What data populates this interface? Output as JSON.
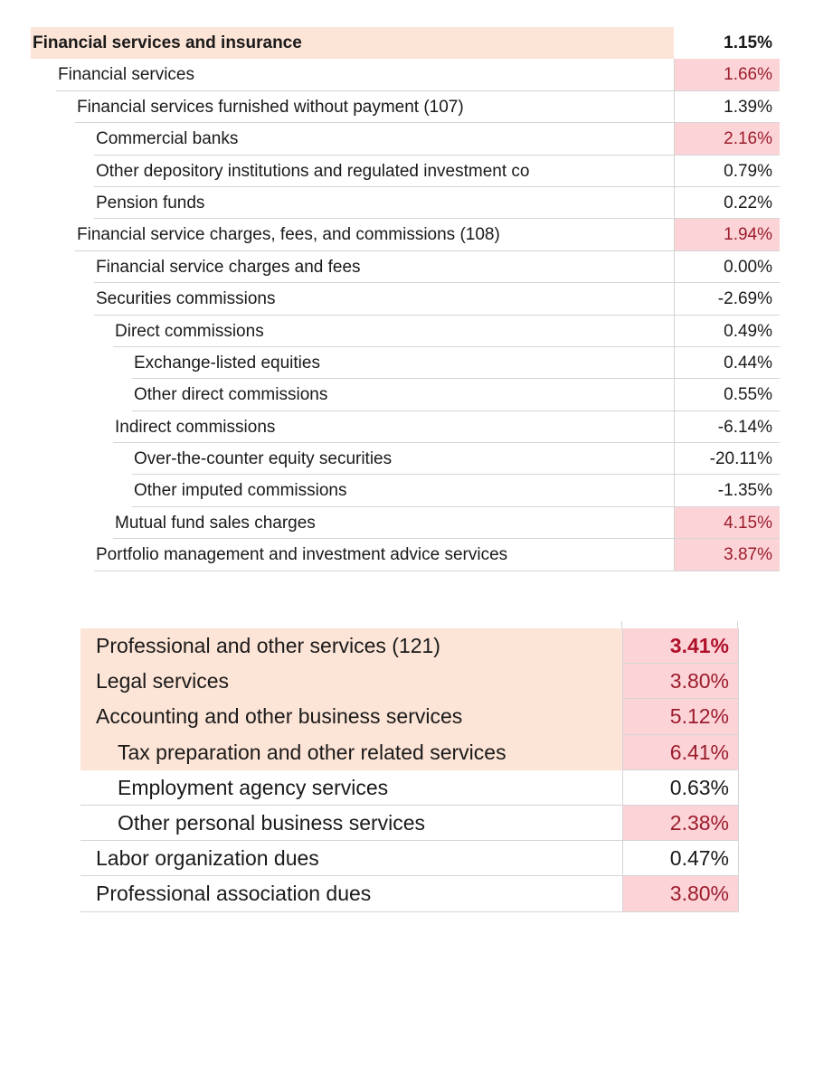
{
  "financial_table": {
    "rows": [
      {
        "label": "Financial services and insurance",
        "value": "1.15%",
        "level": 0,
        "header": true,
        "highlight": false
      },
      {
        "label": "Financial services",
        "value": "1.66%",
        "level": 1,
        "highlight": true
      },
      {
        "label": "Financial services furnished without payment (107)",
        "value": "1.39%",
        "level": 2,
        "highlight": false
      },
      {
        "label": "Commercial banks",
        "value": "2.16%",
        "level": 3,
        "highlight": true
      },
      {
        "label": "Other depository institutions and regulated investment co",
        "value": "0.79%",
        "level": 3,
        "highlight": false
      },
      {
        "label": "Pension funds",
        "value": "0.22%",
        "level": 3,
        "highlight": false
      },
      {
        "label": "Financial service charges, fees, and commissions (108)",
        "value": "1.94%",
        "level": 2,
        "highlight": true
      },
      {
        "label": "Financial service charges and fees",
        "value": "0.00%",
        "level": 3,
        "highlight": false
      },
      {
        "label": "Securities commissions",
        "value": "-2.69%",
        "level": 3,
        "highlight": false
      },
      {
        "label": "Direct commissions",
        "value": "0.49%",
        "level": 4,
        "highlight": false
      },
      {
        "label": "Exchange-listed equities",
        "value": "0.44%",
        "level": 5,
        "highlight": false
      },
      {
        "label": "Other direct commissions",
        "value": "0.55%",
        "level": 5,
        "highlight": false
      },
      {
        "label": "Indirect commissions",
        "value": "-6.14%",
        "level": 4,
        "highlight": false
      },
      {
        "label": "Over-the-counter equity securities",
        "value": "-20.11%",
        "level": 5,
        "highlight": false
      },
      {
        "label": "Other imputed commissions",
        "value": "-1.35%",
        "level": 5,
        "highlight": false
      },
      {
        "label": "Mutual fund sales charges",
        "value": "4.15%",
        "level": 4,
        "highlight": true
      },
      {
        "label": "Portfolio management and investment advice services",
        "value": "3.87%",
        "level": 3,
        "highlight": true
      }
    ]
  },
  "professional_table": {
    "rows": [
      {
        "label": "Professional and other services (121)",
        "value": "3.41%",
        "level": 0,
        "label_highlight": true,
        "highlight": true,
        "bold_value": true
      },
      {
        "label": "Legal services",
        "value": "3.80%",
        "level": 0,
        "label_highlight": true,
        "highlight": true
      },
      {
        "label": "Accounting and other business services",
        "value": "5.12%",
        "level": 0,
        "label_highlight": true,
        "highlight": true
      },
      {
        "label": "Tax preparation and other related services",
        "value": "6.41%",
        "level": 1,
        "label_highlight": true,
        "highlight": true
      },
      {
        "label": "Employment agency services",
        "value": "0.63%",
        "level": 1,
        "label_highlight": false,
        "highlight": false
      },
      {
        "label": "Other personal business services",
        "value": "2.38%",
        "level": 1,
        "label_highlight": false,
        "highlight": true
      },
      {
        "label": "Labor organization dues",
        "value": "0.47%",
        "level": 0,
        "label_highlight": false,
        "highlight": false
      },
      {
        "label": "Professional association dues",
        "value": "3.80%",
        "level": 0,
        "label_highlight": false,
        "highlight": true
      }
    ]
  }
}
